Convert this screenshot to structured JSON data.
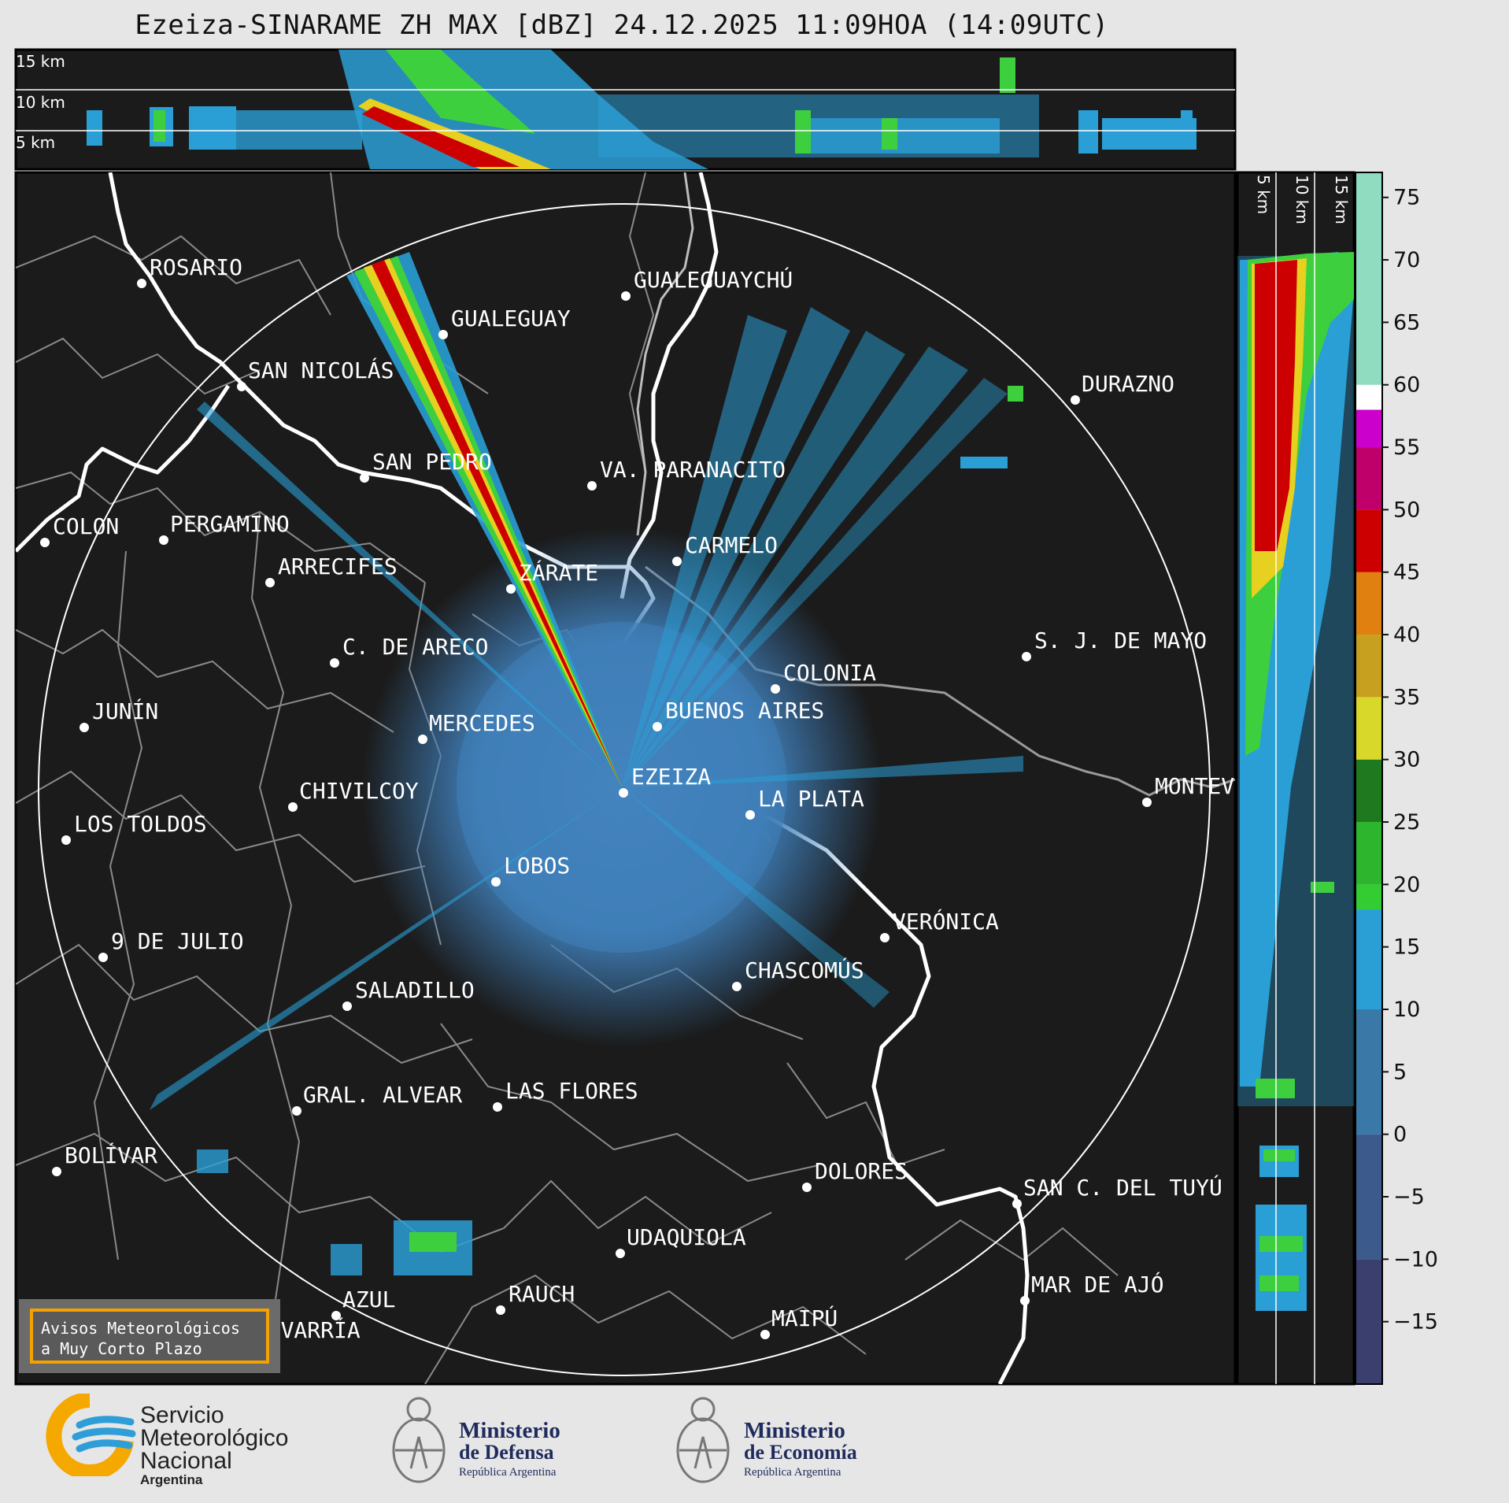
{
  "title": "Ezeiza-SINARAME ZH MAX [dBZ] 24.12.2025 11:09HOA (14:09UTC)",
  "height_labels_top": [
    "15 km",
    "10 km",
    "5 km"
  ],
  "height_labels_side": [
    "5 km",
    "10 km",
    "15 km"
  ],
  "radar_site": "EZEIZA",
  "cities": [
    {
      "name": "ROSARIO"
    },
    {
      "name": "GUALEGUAYCHÚ"
    },
    {
      "name": "GUALEGUAY"
    },
    {
      "name": "SAN NICOLÁS"
    },
    {
      "name": "DURAZNO"
    },
    {
      "name": "SAN PEDRO"
    },
    {
      "name": "VA. PARANACITO"
    },
    {
      "name": "COLON"
    },
    {
      "name": "PERGAMINO"
    },
    {
      "name": "CARMELO"
    },
    {
      "name": "ARRECIFES"
    },
    {
      "name": "ZÁRATE"
    },
    {
      "name": "S. J. DE MAYO"
    },
    {
      "name": "C. DE ARECO"
    },
    {
      "name": "COLONIA"
    },
    {
      "name": "JUNÍN"
    },
    {
      "name": "BUENOS AIRES"
    },
    {
      "name": "MERCEDES"
    },
    {
      "name": "EZEIZA"
    },
    {
      "name": "MONTEVIDEO"
    },
    {
      "name": "CHIVILCOY"
    },
    {
      "name": "LA PLATA"
    },
    {
      "name": "LOS TOLDOS"
    },
    {
      "name": "LOBOS"
    },
    {
      "name": "VERÓNICA"
    },
    {
      "name": "9 DE JULIO"
    },
    {
      "name": "CHASCOMÚS"
    },
    {
      "name": "SALADILLO"
    },
    {
      "name": "GRAL. ALVEAR"
    },
    {
      "name": "LAS FLORES"
    },
    {
      "name": "BOLÍVAR"
    },
    {
      "name": "DOLORES"
    },
    {
      "name": "SAN C. DEL TUYÚ"
    },
    {
      "name": "UDAQUIOLA"
    },
    {
      "name": "MAR DE AJÓ"
    },
    {
      "name": "AZUL"
    },
    {
      "name": "RAUCH"
    },
    {
      "name": "OLAVARRÍA"
    },
    {
      "name": "MAIPÚ"
    }
  ],
  "colorbar": {
    "unit": "dBZ",
    "ticks": [
      "75",
      "70",
      "65",
      "60",
      "55",
      "50",
      "45",
      "40",
      "35",
      "30",
      "25",
      "20",
      "15",
      "10",
      "5",
      "0",
      "−5",
      "−10",
      "−15"
    ],
    "bands": [
      {
        "from": -20,
        "to": -10,
        "color": "#3b3f6e"
      },
      {
        "from": -10,
        "to": 0,
        "color": "#3d5a8c"
      },
      {
        "from": 0,
        "to": 10,
        "color": "#3a78a8"
      },
      {
        "from": 10,
        "to": 18,
        "color": "#2a9fd6"
      },
      {
        "from": 18,
        "to": 20,
        "color": "#33cc33"
      },
      {
        "from": 20,
        "to": 25,
        "color": "#2db52d"
      },
      {
        "from": 25,
        "to": 30,
        "color": "#1f7a1f"
      },
      {
        "from": 30,
        "to": 35,
        "color": "#d8d82a"
      },
      {
        "from": 35,
        "to": 40,
        "color": "#c8a020"
      },
      {
        "from": 40,
        "to": 45,
        "color": "#e08010"
      },
      {
        "from": 45,
        "to": 50,
        "color": "#cc0000"
      },
      {
        "from": 50,
        "to": 55,
        "color": "#c0006a"
      },
      {
        "from": 55,
        "to": 58,
        "color": "#cc00cc"
      },
      {
        "from": 58,
        "to": 60,
        "color": "#ffffff"
      },
      {
        "from": 60,
        "to": 77,
        "color": "#8fdcc0"
      }
    ]
  },
  "notice": {
    "line1": "Avisos Meteorológicos",
    "line2": "a Muy Corto Plazo"
  },
  "logos": {
    "smn": {
      "line1": "Servicio",
      "line2": "Meteorológico",
      "line3": "Nacional",
      "line4": "Argentina"
    },
    "defensa": {
      "line1": "Ministerio",
      "line2": "de Defensa",
      "line3": "República Argentina"
    },
    "economia": {
      "line1": "Ministerio",
      "line2": "de Economía",
      "line3": "República Argentina"
    }
  }
}
